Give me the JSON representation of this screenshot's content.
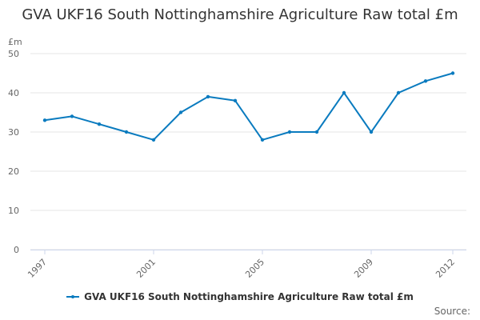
{
  "colors": {
    "series": "#0a7bbf",
    "grid": "#e6e6e6",
    "axis": "#ccd6eb"
  },
  "chart_data": {
    "type": "line",
    "title": "GVA UKF16 South Nottinghamshire Agriculture Raw total £m",
    "ylabel": "£m",
    "xlabel": "",
    "x": [
      1997,
      1998,
      1999,
      2000,
      2001,
      2002,
      2003,
      2004,
      2005,
      2006,
      2007,
      2008,
      2009,
      2010,
      2011,
      2012
    ],
    "x_ticks": [
      "1997",
      "2001",
      "2005",
      "2009",
      "2012"
    ],
    "y_ticks": [
      "0",
      "10",
      "20",
      "30",
      "40",
      "50"
    ],
    "xlim": [
      1997,
      2012
    ],
    "ylim": [
      0,
      50
    ],
    "grid": true,
    "legend_position": "bottom",
    "series": [
      {
        "name": "GVA UKF16 South Nottinghamshire Agriculture Raw total £m",
        "values": [
          33,
          34,
          32,
          30,
          28,
          35,
          39,
          38,
          28,
          30,
          30,
          40,
          30,
          40,
          43,
          45
        ]
      }
    ]
  },
  "footer": {
    "source_label": "Source:"
  }
}
